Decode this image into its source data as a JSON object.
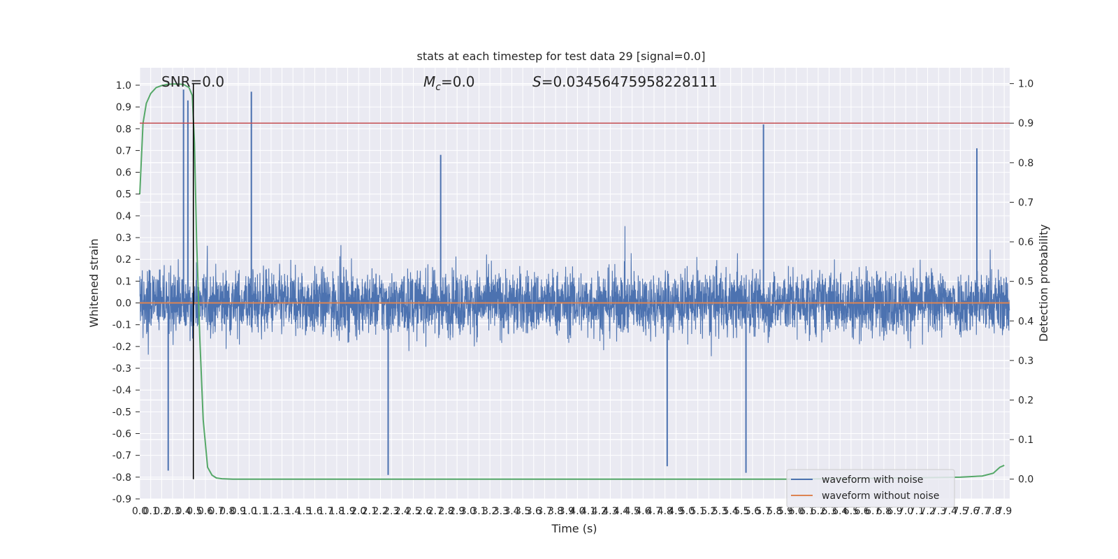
{
  "chart_data": {
    "type": "line",
    "title": "stats at each timestep for test data 29 [signal=0.0]",
    "xlabel": "Time (s)",
    "ylabel": "Whitened strain",
    "y2label": "Detection probability",
    "xlim": [
      0.0,
      7.95
    ],
    "ylim": [
      -0.9,
      1.08
    ],
    "y2lim": [
      -0.05,
      1.04
    ],
    "x_tick_step": 0.1,
    "y_tick_step": 0.1,
    "y2_tick_step": 0.1,
    "grid": true,
    "legend": "bottom-right",
    "annotations": {
      "snr": "SNR=0.0",
      "mc_symbol": "M",
      "mc_sub": "c",
      "mc_value": "=0.0",
      "s_symbol": "S",
      "s_value": "=0.03456475958228111"
    },
    "series": [
      {
        "name": "waveform with noise",
        "color": "#4c72b0",
        "kind": "noise",
        "axis": "left",
        "typical_amplitude": 0.28,
        "spikes": [
          {
            "x": 0.4,
            "y": 0.98
          },
          {
            "x": 0.44,
            "y": 0.93
          },
          {
            "x": 1.02,
            "y": 0.97
          },
          {
            "x": 0.26,
            "y": -0.77
          },
          {
            "x": 2.27,
            "y": -0.79
          },
          {
            "x": 5.7,
            "y": 0.82
          },
          {
            "x": 5.54,
            "y": -0.78
          },
          {
            "x": 4.82,
            "y": -0.75
          },
          {
            "x": 2.75,
            "y": 0.68
          },
          {
            "x": 7.65,
            "y": 0.71
          }
        ]
      },
      {
        "name": "waveform without noise",
        "color": "#dd8452",
        "axis": "left",
        "x": [
          0.0,
          7.95
        ],
        "y": [
          0.0,
          0.0
        ]
      },
      {
        "name": "",
        "color": "#55a868",
        "axis": "right",
        "x": [
          0.0,
          0.03,
          0.06,
          0.1,
          0.15,
          0.2,
          0.25,
          0.3,
          0.35,
          0.4,
          0.45,
          0.48,
          0.5,
          0.52,
          0.55,
          0.58,
          0.62,
          0.66,
          0.7,
          0.75,
          0.85,
          1.0,
          2.0,
          3.0,
          4.0,
          5.0,
          6.0,
          6.5,
          7.0,
          7.5,
          7.7,
          7.8,
          7.86,
          7.9
        ],
        "y": [
          0.72,
          0.9,
          0.95,
          0.975,
          0.99,
          0.995,
          0.998,
          0.999,
          0.999,
          0.998,
          0.99,
          0.97,
          0.85,
          0.6,
          0.35,
          0.15,
          0.03,
          0.01,
          0.003,
          0.001,
          0.0,
          0.0,
          0.0,
          0.0,
          0.0,
          0.0,
          0.0,
          0.002,
          0.003,
          0.005,
          0.008,
          0.015,
          0.03,
          0.035
        ]
      }
    ],
    "marker_line": {
      "x": 0.49,
      "color": "#000000"
    },
    "threshold_line": {
      "y2": 0.9,
      "color": "#c44e52"
    }
  }
}
